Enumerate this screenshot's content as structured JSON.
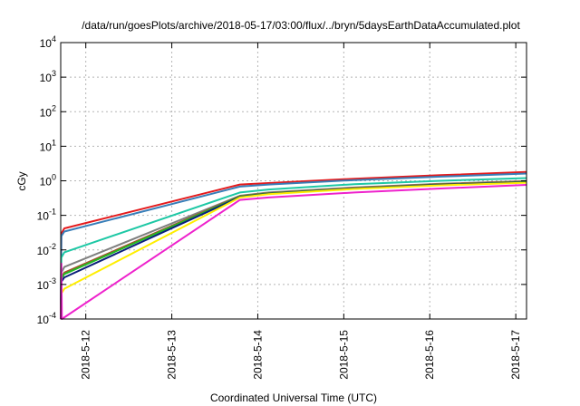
{
  "chart_data": {
    "type": "line",
    "title": "/data/run/goesPlots/archive/2018-05-17/03:00/flux/../bryn/5daysEarthDataAccumulated.plot",
    "xlabel": "Coordinated Universal Time (UTC)",
    "ylabel": "cGy",
    "y_scale": "log",
    "ylim": [
      0.0001,
      10000
    ],
    "xlim": [
      "2018-05-11T17:00",
      "2018-05-17T03:00"
    ],
    "grid": true,
    "y_ticks": [
      {
        "value": 0.0001,
        "base": "10",
        "exp": "-4"
      },
      {
        "value": 0.001,
        "base": "10",
        "exp": "-3"
      },
      {
        "value": 0.01,
        "base": "10",
        "exp": "-2"
      },
      {
        "value": 0.1,
        "base": "10",
        "exp": "-1"
      },
      {
        "value": 1,
        "base": "10",
        "exp": "0"
      },
      {
        "value": 10,
        "base": "10",
        "exp": "1"
      },
      {
        "value": 100,
        "base": "10",
        "exp": "2"
      },
      {
        "value": 1000,
        "base": "10",
        "exp": "3"
      },
      {
        "value": 10000,
        "base": "10",
        "exp": "4"
      }
    ],
    "x_ticks": [
      {
        "value": "2018-05-12T00:00",
        "label": "2018-5-12"
      },
      {
        "value": "2018-05-13T00:00",
        "label": "2018-5-13"
      },
      {
        "value": "2018-05-14T00:00",
        "label": "2018-5-14"
      },
      {
        "value": "2018-05-15T00:00",
        "label": "2018-5-15"
      },
      {
        "value": "2018-05-16T00:00",
        "label": "2018-5-16"
      },
      {
        "value": "2018-05-17T00:00",
        "label": "2018-5-17"
      }
    ],
    "series": [
      {
        "color": "#e41a1c",
        "points": [
          [
            "2018-05-11T17:00",
            0.0001
          ],
          [
            "2018-05-11T17:10",
            0.03
          ],
          [
            "2018-05-11T18:00",
            0.042
          ],
          [
            "2018-05-13T19:00",
            0.78
          ],
          [
            "2018-05-14T03:00",
            0.86
          ],
          [
            "2018-05-15T03:00",
            1.15
          ],
          [
            "2018-05-16T03:00",
            1.45
          ],
          [
            "2018-05-17T03:00",
            1.8
          ]
        ]
      },
      {
        "color": "#377eb8",
        "points": [
          [
            "2018-05-11T17:00",
            0.0001
          ],
          [
            "2018-05-11T17:10",
            0.025
          ],
          [
            "2018-05-11T18:00",
            0.034
          ],
          [
            "2018-05-13T19:00",
            0.68
          ],
          [
            "2018-05-14T03:00",
            0.78
          ],
          [
            "2018-05-15T03:00",
            1.05
          ],
          [
            "2018-05-16T03:00",
            1.32
          ],
          [
            "2018-05-17T03:00",
            1.62
          ]
        ]
      },
      {
        "color": "#1ec8a5",
        "points": [
          [
            "2018-05-11T17:00",
            0.0001
          ],
          [
            "2018-05-11T17:10",
            0.006
          ],
          [
            "2018-05-11T18:00",
            0.0085
          ],
          [
            "2018-05-13T19:00",
            0.46
          ],
          [
            "2018-05-14T03:00",
            0.56
          ],
          [
            "2018-05-15T03:00",
            0.8
          ],
          [
            "2018-05-16T03:00",
            1.0
          ],
          [
            "2018-05-17T03:00",
            1.2
          ]
        ]
      },
      {
        "color": "#7f7f7f",
        "points": [
          [
            "2018-05-11T17:00",
            0.0001
          ],
          [
            "2018-05-11T17:10",
            0.0022
          ],
          [
            "2018-05-11T18:00",
            0.0032
          ],
          [
            "2018-05-13T19:00",
            0.37
          ],
          [
            "2018-05-14T03:00",
            0.46
          ],
          [
            "2018-05-15T03:00",
            0.64
          ],
          [
            "2018-05-16T03:00",
            0.82
          ],
          [
            "2018-05-17T03:00",
            0.98
          ]
        ]
      },
      {
        "color": "#a0522d",
        "points": [
          [
            "2018-05-11T17:00",
            0.0001
          ],
          [
            "2018-05-11T17:10",
            0.0016
          ],
          [
            "2018-05-11T18:00",
            0.0022
          ],
          [
            "2018-05-13T19:00",
            0.36
          ],
          [
            "2018-05-14T03:00",
            0.44
          ],
          [
            "2018-05-15T03:00",
            0.62
          ],
          [
            "2018-05-16T03:00",
            0.8
          ],
          [
            "2018-05-17T03:00",
            0.95
          ]
        ]
      },
      {
        "color": "#22bb22",
        "points": [
          [
            "2018-05-11T17:00",
            0.0001
          ],
          [
            "2018-05-11T17:10",
            0.0015
          ],
          [
            "2018-05-11T18:00",
            0.002
          ],
          [
            "2018-05-13T19:00",
            0.35
          ],
          [
            "2018-05-14T03:00",
            0.43
          ],
          [
            "2018-05-15T03:00",
            0.6
          ],
          [
            "2018-05-16T03:00",
            0.77
          ],
          [
            "2018-05-17T03:00",
            0.92
          ]
        ]
      },
      {
        "color": "#0a1f7a",
        "points": [
          [
            "2018-05-11T17:00",
            0.0001
          ],
          [
            "2018-05-11T17:10",
            0.0012
          ],
          [
            "2018-05-11T18:00",
            0.0016
          ],
          [
            "2018-05-13T19:00",
            0.34
          ],
          [
            "2018-05-14T03:00",
            0.42
          ],
          [
            "2018-05-15T03:00",
            0.59
          ],
          [
            "2018-05-16T03:00",
            0.76
          ],
          [
            "2018-05-17T03:00",
            0.9
          ]
        ]
      },
      {
        "color": "#ffee00",
        "points": [
          [
            "2018-05-11T17:00",
            0.0001
          ],
          [
            "2018-05-11T17:10",
            0.00055
          ],
          [
            "2018-05-11T18:00",
            0.00075
          ],
          [
            "2018-05-13T19:00",
            0.33
          ],
          [
            "2018-05-14T03:00",
            0.41
          ],
          [
            "2018-05-15T03:00",
            0.58
          ],
          [
            "2018-05-16T03:00",
            0.74
          ],
          [
            "2018-05-17T03:00",
            0.88
          ]
        ]
      },
      {
        "color": "#ee22cc",
        "points": [
          [
            "2018-05-11T17:00",
            0.0001
          ],
          [
            "2018-05-11T17:10",
            0.004
          ],
          [
            "2018-05-11T17:20",
            0.0001
          ],
          [
            "2018-05-13T19:00",
            0.28
          ],
          [
            "2018-05-14T03:00",
            0.33
          ],
          [
            "2018-05-15T03:00",
            0.46
          ],
          [
            "2018-05-16T03:00",
            0.6
          ],
          [
            "2018-05-17T03:00",
            0.76
          ]
        ]
      }
    ]
  }
}
